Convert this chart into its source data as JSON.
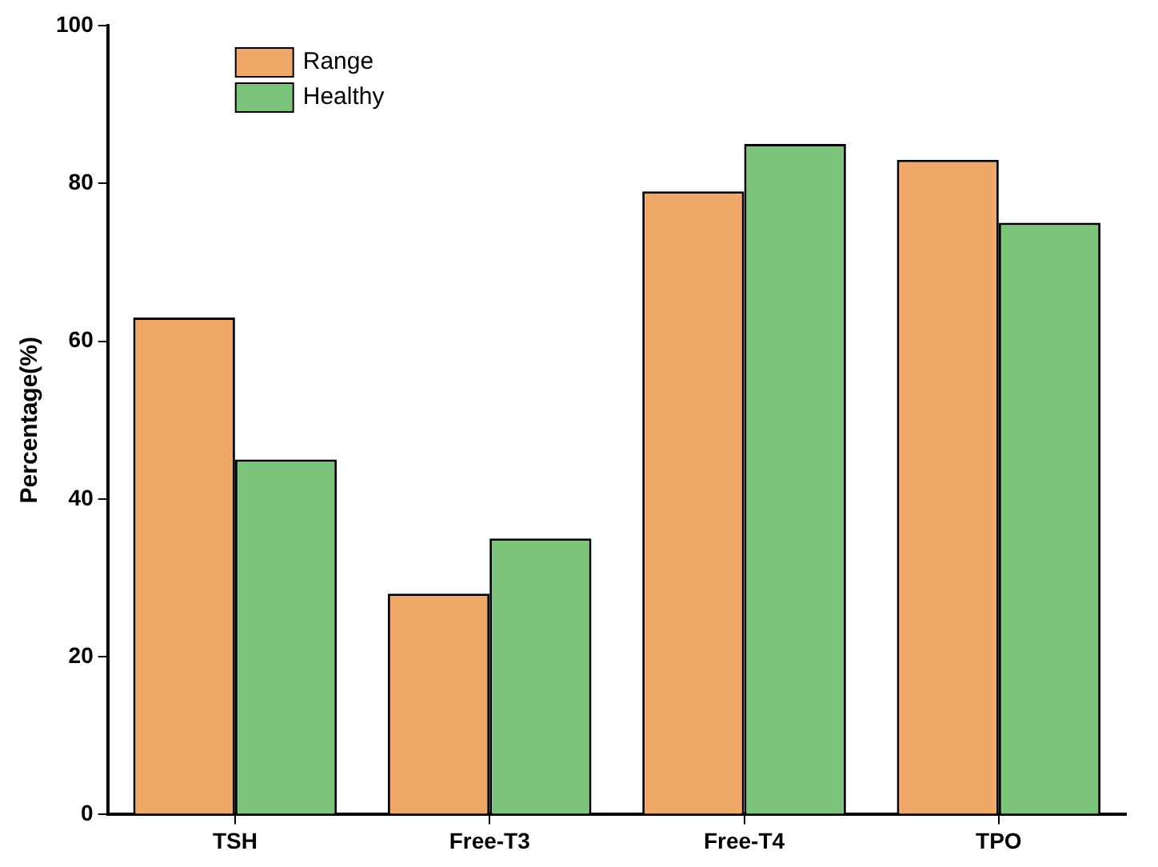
{
  "chart_data": {
    "type": "bar",
    "ylabel": "Percentage(%)",
    "categories": [
      "TSH",
      "Free-T3",
      "Free-T4",
      "TPO"
    ],
    "series": [
      {
        "name": "Range",
        "color": "#f0a868",
        "values": [
          63,
          28,
          79,
          83
        ]
      },
      {
        "name": "Healthy",
        "color": "#7cc47c",
        "values": [
          45,
          35,
          85,
          75
        ]
      }
    ],
    "ylim": [
      0,
      100
    ],
    "yticks": [
      0,
      20,
      40,
      60,
      80,
      100
    ],
    "grid": false,
    "legend": "top left"
  }
}
